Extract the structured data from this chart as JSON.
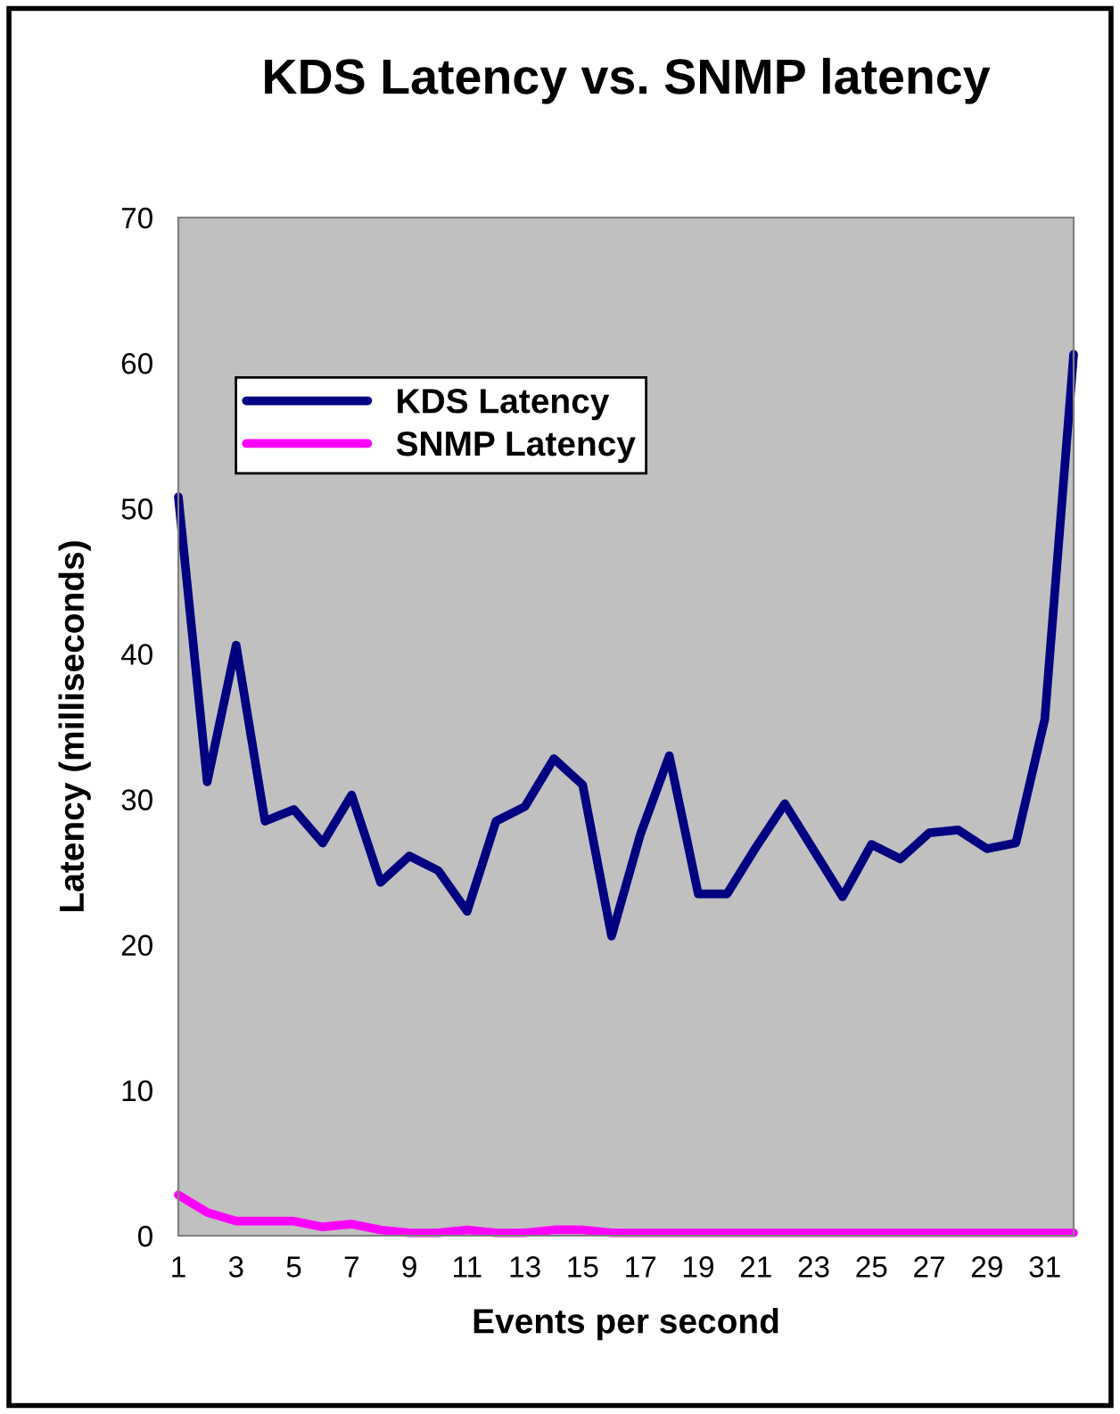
{
  "chart_data": {
    "type": "line",
    "title": "KDS Latency vs. SNMP latency",
    "xlabel": "Events per second",
    "ylabel": "Latency (milliseconds)",
    "categories": [
      "1",
      null,
      "3",
      null,
      "5",
      null,
      "7",
      null,
      "9",
      null,
      "11",
      null,
      "13",
      null,
      "15",
      null,
      "17",
      null,
      "19",
      null,
      "21",
      null,
      "23",
      null,
      "25",
      null,
      "27",
      null,
      "29",
      null,
      "31",
      null
    ],
    "series": [
      {
        "name": "KDS Latency",
        "color": "#000080",
        "values": [
          50.8,
          31.2,
          40.6,
          28.5,
          29.3,
          27.0,
          30.3,
          24.3,
          26.1,
          25.1,
          22.3,
          28.5,
          29.5,
          32.8,
          31.0,
          20.6,
          27.6,
          33.0,
          23.5,
          23.5,
          26.7,
          29.7,
          26.5,
          23.3,
          26.9,
          25.9,
          27.7,
          27.9,
          26.6,
          27.0,
          35.5,
          60.6
        ]
      },
      {
        "name": "SNMP Latency",
        "color": "#ff00ff",
        "values": [
          2.8,
          1.6,
          1.0,
          1.0,
          1.0,
          0.6,
          0.8,
          0.4,
          0.2,
          0.2,
          0.4,
          0.2,
          0.2,
          0.4,
          0.4,
          0.2,
          0.2,
          0.2,
          0.2,
          0.2,
          0.2,
          0.2,
          0.2,
          0.2,
          0.2,
          0.2,
          0.2,
          0.2,
          0.2,
          0.2,
          0.2,
          0.2
        ]
      }
    ],
    "ylim": [
      0,
      70
    ],
    "yticks": [
      0,
      10,
      20,
      30,
      40,
      50,
      60,
      70
    ],
    "grid": false,
    "legend": "top left",
    "marker": "none",
    "line_style": "solid"
  }
}
